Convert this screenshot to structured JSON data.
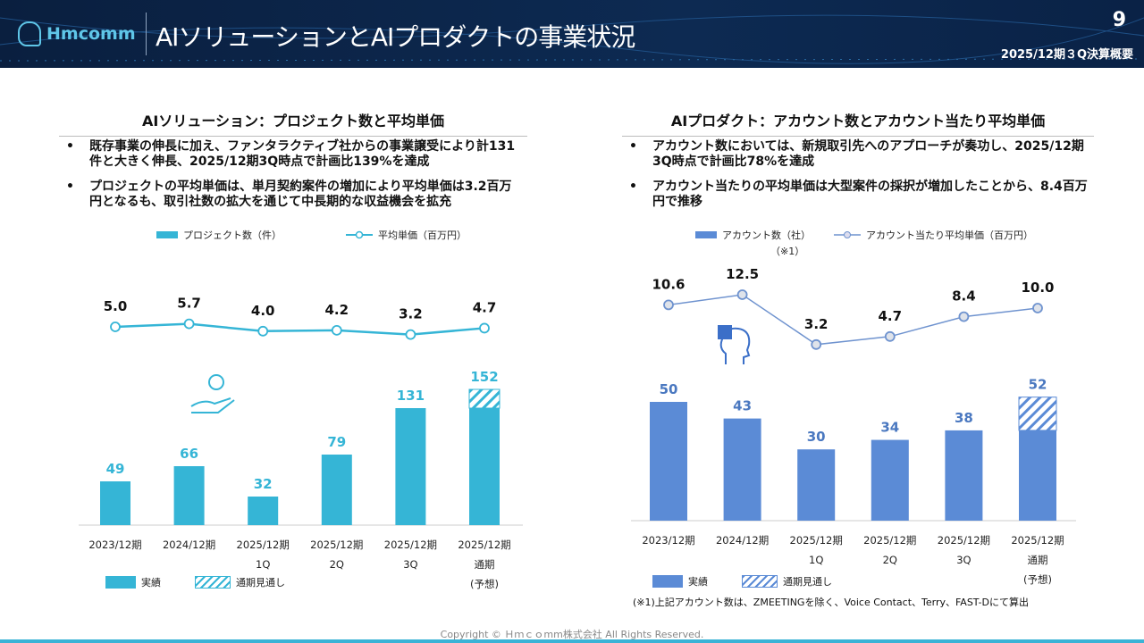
{
  "header": {
    "logo_text": "Hmcomm",
    "title": "AIソリューションとAIプロダクトの事業状況",
    "page_number": "9",
    "subtitle": "2025/12期３Q決算概要"
  },
  "left": {
    "section_title": "AIソリューション：プロジェクト数と平均単価",
    "bullets": [
      "既存事業の伸長に加え、ファンタラクティブ社からの事業譲受により計131件と大きく伸長、2025/12期3Q時点で計画比139%を達成",
      "プロジェクトの平均単価は、単月契約案件の増加により平均単価は3.2百万円となるも、取引社数の拡大を通じて中長期的な収益機会を拡充"
    ],
    "legend_bar": "プロジェクト数（件）",
    "legend_line": "平均単価（百万円）",
    "legend_actual": "実績",
    "legend_forecast": "通期見通し"
  },
  "right": {
    "section_title": "AIプロダクト：アカウント数とアカウント当たり平均単価",
    "bullets": [
      "アカウント数においては、新規取引先へのアプローチが奏功し、2025/12期3Q時点で計画比78%を達成",
      "アカウント当たりの平均単価は大型案件の採択が増加したことから、8.4百万円で推移"
    ],
    "legend_bar": "アカウント数（社）",
    "legend_bar_note": "（※1）",
    "legend_line": "アカウント当たり平均単価（百万円）",
    "legend_actual": "実績",
    "legend_forecast": "通期見通し",
    "footnote": "(※1)上記アカウント数は、ZMEETINGを除く、Voice Contact、Terry、FAST-Dにて算出"
  },
  "colors": {
    "left_bar": "#35b5d6",
    "right_bar": "#5b8bd6",
    "right_line": "#6f93cf"
  },
  "chart_data": [
    {
      "type": "bar",
      "title": "AIソリューション：プロジェクト数と平均単価",
      "categories": [
        [
          "2023/12期"
        ],
        [
          "2024/12期"
        ],
        [
          "2025/12期",
          "1Q"
        ],
        [
          "2025/12期",
          "2Q"
        ],
        [
          "2025/12期",
          "3Q"
        ],
        [
          "2025/12期",
          "通期",
          "(予想)"
        ]
      ],
      "series": [
        {
          "name": "プロジェクト数（件）",
          "type": "bar",
          "values": [
            49,
            66,
            32,
            79,
            131,
            131
          ]
        },
        {
          "name": "通期見通し",
          "type": "bar-forecast",
          "values": [
            null,
            null,
            null,
            null,
            null,
            152
          ]
        },
        {
          "name": "平均単価（百万円）",
          "type": "line",
          "values": [
            5.0,
            5.7,
            4.0,
            4.2,
            3.2,
            4.7
          ]
        }
      ]
    },
    {
      "type": "bar",
      "title": "AIプロダクト：アカウント数とアカウント当たり平均単価",
      "categories": [
        [
          "2023/12期"
        ],
        [
          "2024/12期"
        ],
        [
          "2025/12期",
          "1Q"
        ],
        [
          "2025/12期",
          "2Q"
        ],
        [
          "2025/12期",
          "3Q"
        ],
        [
          "2025/12期",
          "通期",
          "(予想)"
        ]
      ],
      "series": [
        {
          "name": "アカウント数（社）",
          "type": "bar",
          "values": [
            50,
            43,
            30,
            34,
            38,
            38
          ]
        },
        {
          "name": "通期見通し",
          "type": "bar-forecast",
          "values": [
            null,
            null,
            null,
            null,
            null,
            52
          ]
        },
        {
          "name": "アカウント当たり平均単価（百万円）",
          "type": "line",
          "values": [
            10.6,
            12.5,
            3.2,
            4.7,
            8.4,
            10.0
          ]
        }
      ]
    }
  ],
  "copyright": "Copyright © Ｈｍｃｏmm株式会社 All Rights Reserved."
}
